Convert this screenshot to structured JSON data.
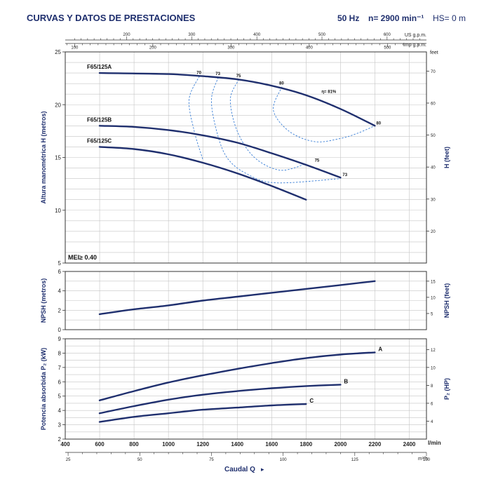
{
  "header": {
    "title": "CURVAS Y DATOS DE PRESTACIONES",
    "freq": "50 Hz",
    "speed": "n= 2900 min⁻¹",
    "hs": "HS= 0 m"
  },
  "colors": {
    "curve": "#1f2f6e",
    "efficiency": "#3a7fd6",
    "frame": "#333333",
    "grid": "#c4c4c4",
    "text": "#1f2f6e"
  },
  "top_axes": {
    "usgpm_label": "US g.p.m.",
    "usgpm_ticks": [
      "200",
      "300",
      "400",
      "500",
      "600"
    ],
    "impgpm_label": "Imp g.p.m.",
    "impgpm_ticks": [
      "100",
      "200",
      "300",
      "400",
      "500"
    ],
    "feet_label": "feet"
  },
  "bottom_axes": {
    "lmin_ticks": [
      "400",
      "600",
      "800",
      "1000",
      "1200",
      "1400",
      "1600",
      "1800",
      "2000",
      "2200",
      "2400"
    ],
    "lmin_unit": "l/min",
    "m3h_ticks": [
      "25",
      "50",
      "75",
      "100",
      "125",
      "150"
    ],
    "m3h_unit": "m³/h",
    "xlabel": "Caudal Q"
  },
  "chart_data": [
    {
      "type": "line",
      "name": "head",
      "ylabel": "Altura manométrica H (metros)",
      "y2label": "H (feet)",
      "xlim": [
        400,
        2500
      ],
      "ylim": [
        5,
        25
      ],
      "yticks": [
        "5",
        "10",
        "15",
        "20",
        "25"
      ],
      "y2ticks": [
        "20",
        "30",
        "40",
        "50",
        "60",
        "70"
      ],
      "grid": true,
      "note": "MEI≥ 0.40",
      "series": [
        {
          "name": "F65/125A",
          "x": [
            600,
            1000,
            1200,
            1400,
            1600,
            1800,
            2000,
            2200
          ],
          "y": [
            23.0,
            22.9,
            22.7,
            22.4,
            21.8,
            20.9,
            19.6,
            18.0
          ]
        },
        {
          "name": "F65/125B",
          "x": [
            600,
            800,
            1000,
            1200,
            1400,
            1600,
            1800,
            2000
          ],
          "y": [
            18.0,
            17.9,
            17.6,
            17.1,
            16.4,
            15.4,
            14.3,
            13.1
          ]
        },
        {
          "name": "F65/125C",
          "x": [
            600,
            800,
            1000,
            1200,
            1400,
            1600,
            1800
          ],
          "y": [
            16.0,
            15.8,
            15.3,
            14.5,
            13.5,
            12.3,
            11.0
          ]
        }
      ],
      "efficiency": [
        {
          "label": "70",
          "x": [
            1180,
            1120,
            1150,
            1200
          ],
          "y": [
            22.7,
            20.5,
            17.5,
            14.8
          ]
        },
        {
          "label": "73",
          "x": [
            1290,
            1250,
            1280,
            1340,
            1450,
            1620,
            2000
          ],
          "y": [
            22.6,
            20.5,
            17.5,
            15.0,
            13.5,
            12.6,
            13.0
          ]
        },
        {
          "label": "75",
          "x": [
            1410,
            1360,
            1400,
            1500,
            1650,
            1800
          ],
          "y": [
            22.4,
            20.5,
            17.5,
            15.0,
            13.8,
            14.4
          ]
        },
        {
          "label": "80",
          "x": [
            1660,
            1610,
            1700,
            1850,
            2000,
            2100,
            2200
          ],
          "y": [
            21.7,
            19.5,
            17.5,
            16.5,
            16.8,
            17.3,
            18.0
          ]
        }
      ],
      "efficiency_text": "η= 81%"
    },
    {
      "type": "line",
      "name": "npsh",
      "ylabel": "NPSH (metros)",
      "y2label": "NPSH (feet)",
      "xlim": [
        400,
        2500
      ],
      "ylim": [
        0,
        6
      ],
      "yticks": [
        "0",
        "2",
        "4",
        "6"
      ],
      "y2ticks": [
        "5",
        "10",
        "15"
      ],
      "grid": true,
      "series": [
        {
          "name": "",
          "x": [
            600,
            800,
            1000,
            1200,
            1400,
            1600,
            1800,
            2000,
            2200
          ],
          "y": [
            1.6,
            2.1,
            2.5,
            3.0,
            3.4,
            3.8,
            4.2,
            4.6,
            5.0
          ]
        }
      ]
    },
    {
      "type": "line",
      "name": "power",
      "ylabel": "Potencia absorbida P₂ (kW)",
      "y2label": "P₂ (HP)",
      "xlim": [
        400,
        2500
      ],
      "ylim": [
        2,
        9
      ],
      "yticks": [
        "2",
        "3",
        "4",
        "5",
        "6",
        "7",
        "8",
        "9"
      ],
      "y2ticks": [
        "4",
        "6",
        "8",
        "10",
        "12"
      ],
      "grid": true,
      "series": [
        {
          "name": "A",
          "x": [
            600,
            800,
            1000,
            1200,
            1400,
            1600,
            1800,
            2000,
            2200
          ],
          "y": [
            4.7,
            5.35,
            5.95,
            6.45,
            6.9,
            7.3,
            7.65,
            7.9,
            8.05
          ]
        },
        {
          "name": "B",
          "x": [
            600,
            800,
            1000,
            1200,
            1400,
            1600,
            1800,
            2000
          ],
          "y": [
            3.8,
            4.3,
            4.75,
            5.1,
            5.35,
            5.55,
            5.7,
            5.8
          ]
        },
        {
          "name": "C",
          "x": [
            600,
            800,
            1000,
            1200,
            1400,
            1600,
            1800
          ],
          "y": [
            3.2,
            3.55,
            3.8,
            4.05,
            4.2,
            4.35,
            4.45
          ]
        }
      ]
    }
  ]
}
